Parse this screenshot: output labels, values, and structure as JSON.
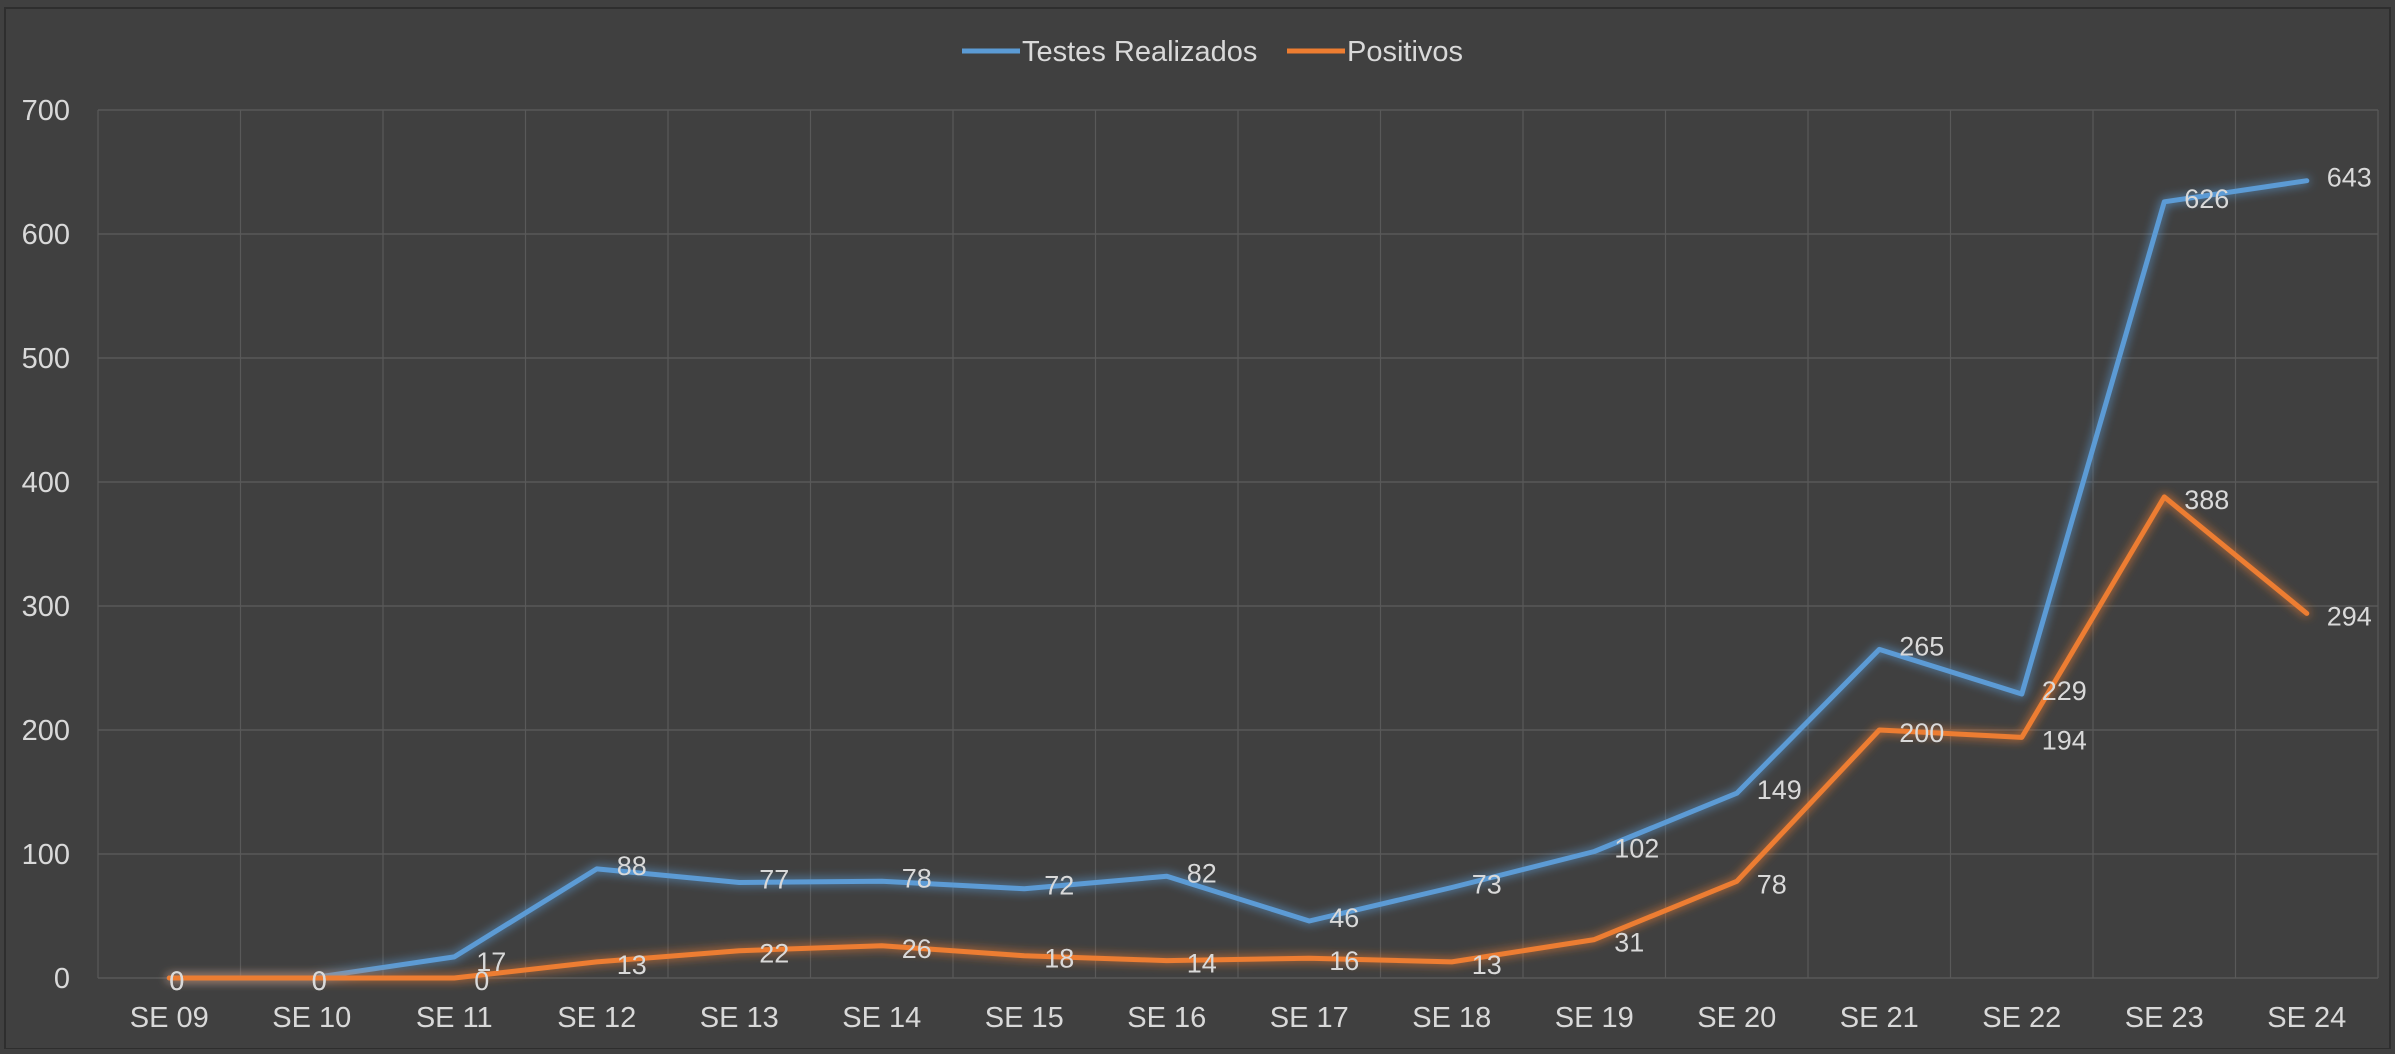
{
  "chart_data": {
    "type": "line",
    "categories": [
      "SE 09",
      "SE 10",
      "SE 11",
      "SE 12",
      "SE 13",
      "SE 14",
      "SE 15",
      "SE 16",
      "SE 17",
      "SE 18",
      "SE 19",
      "SE 20",
      "SE 21",
      "SE 22",
      "SE 23",
      "SE 24"
    ],
    "series": [
      {
        "name": "Testes Realizados",
        "color": "#5b9bd5",
        "values": [
          0,
          0,
          17,
          88,
          77,
          78,
          72,
          82,
          46,
          73,
          102,
          149,
          265,
          229,
          626,
          643
        ],
        "labels": [
          "0",
          "0",
          "17",
          "88",
          "77",
          "78",
          "72",
          "82",
          "46",
          "73",
          "102",
          "149",
          "265",
          "229",
          "626",
          "643"
        ]
      },
      {
        "name": "Positivos",
        "color": "#ed7d31",
        "values": [
          0,
          0,
          0,
          13,
          22,
          26,
          18,
          14,
          16,
          13,
          31,
          78,
          200,
          194,
          388,
          294
        ],
        "labels": [
          "0",
          "0",
          "0",
          "13",
          "22",
          "26",
          "18",
          "14",
          "16",
          "13",
          "31",
          "78",
          "200",
          "194",
          "388",
          "294"
        ]
      }
    ],
    "yticks": [
      "0",
      "100",
      "200",
      "300",
      "400",
      "500",
      "600",
      "700"
    ],
    "ylim": [
      0,
      700
    ],
    "legend_position": "top-center",
    "grid": true,
    "background": "#404040",
    "grid_color": "#595959",
    "text_color": "#d9d9d9"
  }
}
